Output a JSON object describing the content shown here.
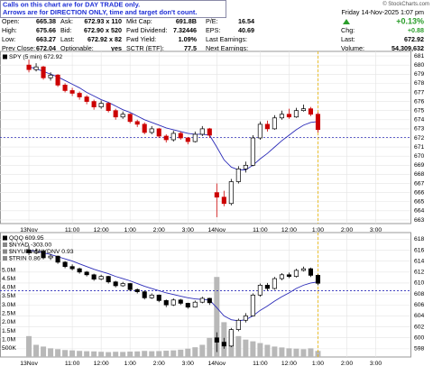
{
  "notice": [
    "Calls on this chart are for DAY TRADE only.",
    "Arrows are for DIRECTION ONLY, time and target don't count."
  ],
  "copyright": "© StockCharts.com",
  "quote": {
    "columns": [
      [
        {
          "label": "Open:",
          "value": "665.38"
        },
        {
          "label": "High:",
          "value": "675.66"
        },
        {
          "label": "Low:",
          "value": "663.27"
        },
        {
          "label": "Prev Close:",
          "value": "672.04"
        }
      ],
      [
        {
          "label": "Ask:",
          "value": "672.93 x 110"
        },
        {
          "label": "Bid:",
          "value": "672.90 x 520"
        },
        {
          "label": "Last:",
          "value": "672.92 x 82"
        },
        {
          "label": "Optionable:",
          "value": "yes"
        }
      ],
      [
        {
          "label": "Mkt Cap:",
          "value": "691.8B"
        },
        {
          "label": "Fwd Dividend:",
          "value": "7.32446"
        },
        {
          "label": "Fwd Yield:",
          "value": "1.09%"
        },
        {
          "label": "SCTR (ETF):",
          "value": "77.5"
        }
      ],
      [
        {
          "label": "P/E:",
          "value": "16.54"
        },
        {
          "label": "EPS:",
          "value": "40.69"
        },
        {
          "label": "Last Earnings:"
        },
        {
          "label": "Next Earnings:"
        }
      ]
    ],
    "date": "Friday 14-Nov-2025 1:07 pm",
    "change_pct": "+0.13%",
    "right": [
      {
        "label": "Chg:",
        "value": "+0.88"
      },
      {
        "label": "Last:",
        "value": "672.92"
      },
      {
        "label": "Volume:",
        "value": "54,309,632"
      }
    ]
  },
  "chart_data": [
    {
      "type": "candlestick",
      "legend": [
        "SPY (5 min) 672.92"
      ],
      "grid": true,
      "up_color": "#000000",
      "down_color": "#cc0000",
      "ma": {
        "color": "#2b2bb8",
        "values": [
          679.8,
          679.6,
          679.3,
          679.0,
          678.7,
          678.3,
          677.9,
          677.5,
          677.0,
          676.6,
          676.2,
          675.9,
          675.5,
          675.1,
          674.8,
          674.4,
          674.0,
          673.7,
          673.4,
          673.1,
          672.9,
          672.7,
          672.5,
          672.4,
          672.4,
          672.3,
          671.0,
          669.6,
          668.8,
          668.5,
          668.5,
          669.0,
          669.7,
          670.3,
          671.0,
          671.7,
          672.3,
          672.9,
          673.4,
          673.7,
          673.8
        ]
      },
      "reference_line": 672.04,
      "reference_color": "#2b2bb8",
      "marker_color": "#e8b400",
      "x": [
        0,
        0.25,
        0.5,
        0.75,
        1,
        1.25,
        1.5,
        1.75,
        2,
        2.25,
        2.5,
        2.75,
        3,
        3.25,
        3.5,
        3.75,
        4,
        4.25,
        4.5,
        4.75,
        5,
        5.25,
        5.5,
        5.75,
        6,
        6.25,
        6.5,
        6.75,
        7,
        7.25,
        7.5,
        7.75,
        8,
        8.25,
        8.5,
        8.75,
        9,
        9.25,
        9.5,
        9.75,
        10
      ],
      "open": [
        680.0,
        679.5,
        679.8,
        678.6,
        678.9,
        677.8,
        677.2,
        676.9,
        676.5,
        676.0,
        675.4,
        675.8,
        675.0,
        674.3,
        674.6,
        673.8,
        673.5,
        672.6,
        673.0,
        672.2,
        671.8,
        672.5,
        672.0,
        671.6,
        672.4,
        673.0,
        666.0,
        665.5,
        664.8,
        667.2,
        668.6,
        669.0,
        672.0,
        673.5,
        673.0,
        674.2,
        674.6,
        674.3,
        675.0,
        675.2,
        674.6
      ],
      "high": [
        680.6,
        680.2,
        679.9,
        679.2,
        679.0,
        678.0,
        677.5,
        677.1,
        676.7,
        676.2,
        676.1,
        675.9,
        675.2,
        674.9,
        674.7,
        674.0,
        673.7,
        673.3,
        673.1,
        672.4,
        672.8,
        672.7,
        672.1,
        672.7,
        673.3,
        673.1,
        667.0,
        666.2,
        667.5,
        668.9,
        669.4,
        672.3,
        673.8,
        673.9,
        674.5,
        675.0,
        675.2,
        675.3,
        675.66,
        675.4,
        674.8
      ],
      "low": [
        679.2,
        679.3,
        678.4,
        678.3,
        677.6,
        677.0,
        676.6,
        676.2,
        675.7,
        675.1,
        675.2,
        674.8,
        674.0,
        674.1,
        673.6,
        673.2,
        672.4,
        672.4,
        672.0,
        671.5,
        671.6,
        671.8,
        671.3,
        671.5,
        672.2,
        672.0,
        663.3,
        664.5,
        664.6,
        667.0,
        668.2,
        668.9,
        671.8,
        672.7,
        672.9,
        674.0,
        674.1,
        674.2,
        674.9,
        674.4,
        672.6
      ],
      "close": [
        679.5,
        679.8,
        678.6,
        678.9,
        677.8,
        677.2,
        676.9,
        676.5,
        676.0,
        675.4,
        675.8,
        675.0,
        674.3,
        674.6,
        673.8,
        673.5,
        672.6,
        673.0,
        672.2,
        671.8,
        672.5,
        672.0,
        671.6,
        672.4,
        673.0,
        672.3,
        665.5,
        664.8,
        667.2,
        668.6,
        669.0,
        672.0,
        673.5,
        673.0,
        674.2,
        674.6,
        674.3,
        675.0,
        675.2,
        674.6,
        672.92
      ],
      "xlim": [
        -1,
        13.2
      ],
      "xticks": [
        {
          "value": 0,
          "label": "13Nov"
        },
        {
          "value": 1.5,
          "label": "11:00"
        },
        {
          "value": 2.5,
          "label": "12:00"
        },
        {
          "value": 3.5,
          "label": "1:00"
        },
        {
          "value": 4.5,
          "label": "2:00"
        },
        {
          "value": 5.5,
          "label": "3:00"
        },
        {
          "value": 6.5,
          "label": "14Nov"
        },
        {
          "value": 8,
          "label": "11:00"
        },
        {
          "value": 9,
          "label": "12:00"
        },
        {
          "value": 10,
          "label": "1:00"
        },
        {
          "value": 11,
          "label": "2:00"
        },
        {
          "value": 12,
          "label": "3:00"
        }
      ],
      "ylim": [
        662.6,
        681.5
      ],
      "yticks": [
        663,
        664,
        665,
        666,
        667,
        668,
        669,
        670,
        671,
        672,
        673,
        674,
        675,
        676,
        677,
        678,
        679,
        680,
        681
      ]
    },
    {
      "type": "candlestick",
      "legend": [
        "QQQ 609.95",
        "$NYAD -303.00",
        "$NYUPV:$NYDNV 0.93",
        "$TRIN 0.86"
      ],
      "grid": true,
      "up_color": "#000000",
      "down_color": "#000000",
      "ma": {
        "color": "#2b2bb8",
        "values": [
          616.0,
          615.8,
          615.5,
          615.2,
          614.8,
          614.4,
          614.0,
          613.5,
          613.0,
          612.5,
          612.1,
          611.7,
          611.2,
          610.8,
          610.4,
          609.9,
          609.4,
          609.0,
          608.6,
          608.2,
          607.9,
          607.6,
          607.3,
          607.1,
          607.0,
          606.9,
          605.5,
          604.0,
          603.3,
          603.1,
          603.3,
          604.0,
          605.0,
          605.8,
          606.7,
          607.5,
          608.2,
          609.0,
          609.6,
          610.0,
          610.2
        ]
      },
      "reference_line": 608.6,
      "reference_color": "#2b2bb8",
      "marker_color": "#e8b400",
      "x": [
        0,
        0.25,
        0.5,
        0.75,
        1,
        1.25,
        1.5,
        1.75,
        2,
        2.25,
        2.5,
        2.75,
        3,
        3.25,
        3.5,
        3.75,
        4,
        4.25,
        4.5,
        4.75,
        5,
        5.25,
        5.5,
        5.75,
        6,
        6.25,
        6.5,
        6.75,
        7,
        7.25,
        7.5,
        7.75,
        8,
        8.25,
        8.5,
        8.75,
        9,
        9.25,
        9.5,
        9.75,
        10
      ],
      "open": [
        616.0,
        615.5,
        615.8,
        614.6,
        614.9,
        613.8,
        613.0,
        612.6,
        612.0,
        611.5,
        610.7,
        611.2,
        610.2,
        609.5,
        609.9,
        608.8,
        608.4,
        607.3,
        607.8,
        606.8,
        606.0,
        606.9,
        606.3,
        605.6,
        606.5,
        607.2,
        600.0,
        599.2,
        598.5,
        601.5,
        603.2,
        604.0,
        607.8,
        609.6,
        609.0,
        610.8,
        611.5,
        611.2,
        612.3,
        612.6,
        611.4
      ],
      "high": [
        616.8,
        616.3,
        616.0,
        615.3,
        615.0,
        614.0,
        613.4,
        612.8,
        612.2,
        611.7,
        611.5,
        611.3,
        610.4,
        610.2,
        610.0,
        609.0,
        608.6,
        608.1,
        607.9,
        607.0,
        607.2,
        607.1,
        606.4,
        606.8,
        607.5,
        607.3,
        601.0,
        600.0,
        601.8,
        603.5,
        604.5,
        608.1,
        609.9,
        610.0,
        611.1,
        611.8,
        611.9,
        612.6,
        613.0,
        612.8,
        611.6
      ],
      "low": [
        615.1,
        615.3,
        614.3,
        614.2,
        613.5,
        612.7,
        612.3,
        611.7,
        611.2,
        610.4,
        610.5,
        609.9,
        609.2,
        609.3,
        608.5,
        608.1,
        607.0,
        607.1,
        606.5,
        605.6,
        605.8,
        606.0,
        605.3,
        605.5,
        606.3,
        606.0,
        597.4,
        598.0,
        598.3,
        601.2,
        602.8,
        603.9,
        607.5,
        608.6,
        608.8,
        610.5,
        610.9,
        611.0,
        612.1,
        611.1,
        609.6
      ],
      "close": [
        615.5,
        615.8,
        614.6,
        614.9,
        613.8,
        613.0,
        612.6,
        612.0,
        611.5,
        610.7,
        611.2,
        610.2,
        609.5,
        609.9,
        608.8,
        608.4,
        607.3,
        607.8,
        606.8,
        606.0,
        606.9,
        606.3,
        605.6,
        606.5,
        607.2,
        606.4,
        599.2,
        598.5,
        601.5,
        603.2,
        604.0,
        607.8,
        609.6,
        609.0,
        610.8,
        611.5,
        611.2,
        612.3,
        612.6,
        611.4,
        609.95
      ],
      "volume": {
        "color": "#b8b8b8",
        "values": [
          1200000,
          700000,
          600000,
          500000,
          450000,
          400000,
          380000,
          350000,
          330000,
          320000,
          300000,
          280000,
          300000,
          290000,
          310000,
          320000,
          350000,
          330000,
          340000,
          360000,
          380000,
          420000,
          480000,
          560000,
          700000,
          1100000,
          4600000,
          2000000,
          1500000,
          1200000,
          1000000,
          900000,
          800000,
          700000,
          600000,
          550000,
          500000,
          480000,
          450000,
          500000,
          350000
        ],
        "lim": [
          0,
          7150000
        ],
        "ticks": [
          {
            "value": 500000,
            "label": "500K"
          },
          {
            "value": 1000000,
            "label": "1.0M"
          },
          {
            "value": 1500000,
            "label": "1.5M"
          },
          {
            "value": 2000000,
            "label": "2.0M"
          },
          {
            "value": 2500000,
            "label": "2.5M"
          },
          {
            "value": 3000000,
            "label": "3.0M"
          },
          {
            "value": 3500000,
            "label": "3.5M"
          },
          {
            "value": 4000000,
            "label": "4.0M"
          },
          {
            "value": 4500000,
            "label": "4.5M"
          },
          {
            "value": 5000000,
            "label": "5.0M"
          }
        ]
      },
      "xlim": [
        -1,
        13.2
      ],
      "xticks": [
        {
          "value": 0,
          "label": "13Nov"
        },
        {
          "value": 1.5,
          "label": "11:00"
        },
        {
          "value": 2.5,
          "label": "12:00"
        },
        {
          "value": 3.5,
          "label": "1:00"
        },
        {
          "value": 4.5,
          "label": "2:00"
        },
        {
          "value": 5.5,
          "label": "3:00"
        },
        {
          "value": 6.5,
          "label": "14Nov"
        },
        {
          "value": 8,
          "label": "11:00"
        },
        {
          "value": 9,
          "label": "12:00"
        },
        {
          "value": 10,
          "label": "1:00"
        },
        {
          "value": 11,
          "label": "2:00"
        },
        {
          "value": 12,
          "label": "3:00"
        }
      ],
      "ylim": [
        596.5,
        619.2
      ],
      "yticks": [
        598,
        600,
        602,
        604,
        606,
        608,
        610,
        612,
        614,
        616,
        618
      ]
    }
  ]
}
